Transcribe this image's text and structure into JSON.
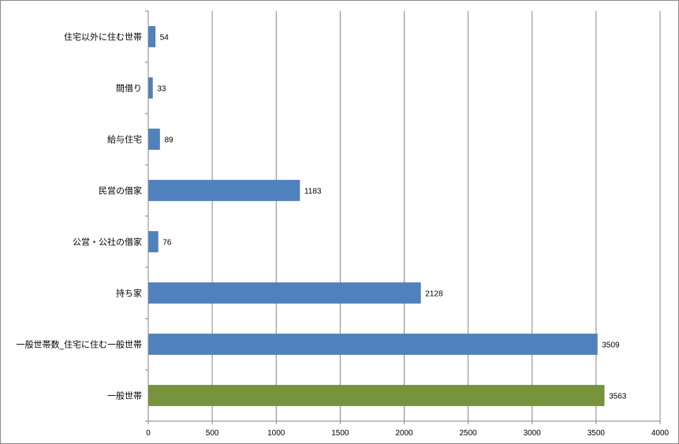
{
  "chart_data": {
    "type": "bar",
    "orientation": "horizontal",
    "categories": [
      "住宅以外に住む世帯",
      "間借り",
      "給与住宅",
      "民営の借家",
      "公営・公社の借家",
      "持ち家",
      "一般世帯数_住宅に住む一般世帯",
      "一般世帯"
    ],
    "values": [
      54,
      33,
      89,
      1183,
      76,
      2128,
      3509,
      3563
    ],
    "bar_colors": [
      "#4f81bd",
      "#4f81bd",
      "#4f81bd",
      "#4f81bd",
      "#4f81bd",
      "#4f81bd",
      "#4f81bd",
      "#77933c"
    ],
    "xlim": [
      0,
      4000
    ],
    "x_ticks": [
      0,
      500,
      1000,
      1500,
      2000,
      2500,
      3000,
      3500,
      4000
    ],
    "grid": "vertical",
    "legend": "none",
    "data_labels": true
  }
}
